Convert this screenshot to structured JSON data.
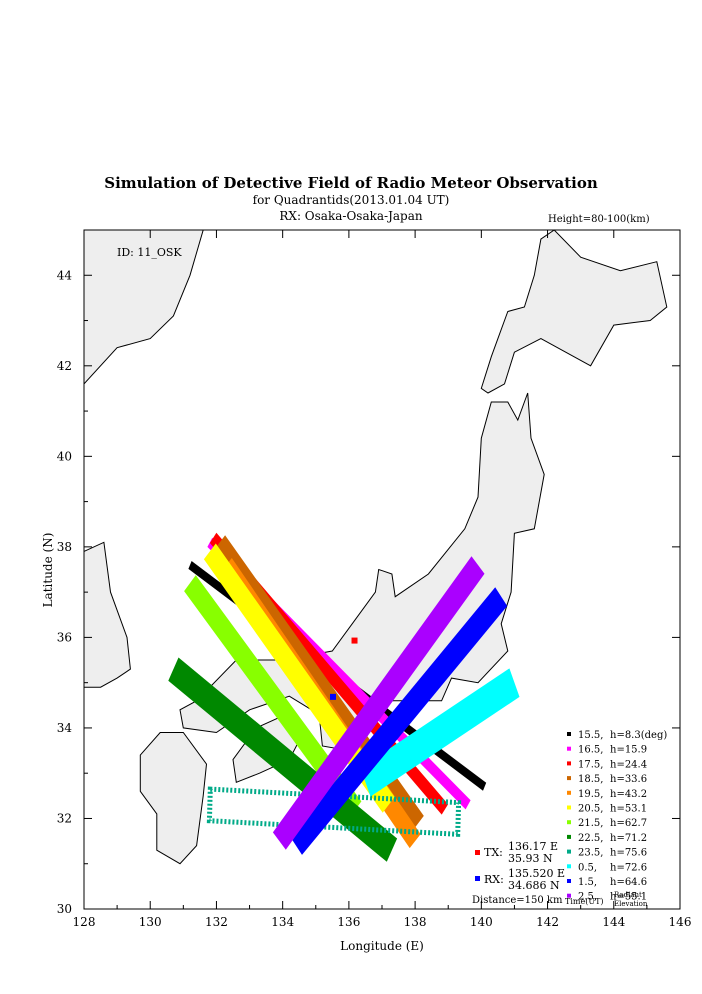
{
  "chart_data": {
    "type": "map",
    "title": "Simulation of Detective Field of Radio Meteor Observation",
    "subtitle_1": "for Quadrantids(2013.01.04 UT)",
    "subtitle_2": "RX: Osaka-Osaka-Japan",
    "height_note": "Height=80-100(km)",
    "id_label": "ID: 11_OSK",
    "xlabel": "Longitude (E)",
    "ylabel": "Latitude (N)",
    "xlim": [
      128,
      146
    ],
    "ylim": [
      30,
      45
    ],
    "xticks": [
      "128",
      "130",
      "132",
      "134",
      "136",
      "138",
      "140",
      "142",
      "144",
      "146"
    ],
    "yticks": [
      "30",
      "32",
      "34",
      "36",
      "38",
      "40",
      "42",
      "44"
    ],
    "tx": {
      "lon": 136.17,
      "lat": 35.93,
      "label": "TX:",
      "lon_text": "136.17 E",
      "lat_text": "35.93 N"
    },
    "rx": {
      "lon": 135.52,
      "lat": 34.686,
      "label": "RX:",
      "lon_text": "135.520 E",
      "lat_text": "34.686 N"
    },
    "distance": "Distance=150 km",
    "legend_footer": {
      "time": "Time(UT)",
      "radiant": "Radiant",
      "elevation": "Elevation"
    },
    "series": [
      {
        "time": "15.5",
        "h": "h=8.3(deg)",
        "color": "#000000",
        "dash": false,
        "width": 0.2,
        "ends": [
          [
            131.2,
            37.6
          ],
          [
            140.1,
            32.7
          ]
        ]
      },
      {
        "time": "16.5",
        "h": "h=15.9",
        "color": "#ff00ff",
        "dash": false,
        "width": 0.25,
        "ends": [
          [
            131.8,
            38.1
          ],
          [
            139.6,
            32.3
          ]
        ]
      },
      {
        "time": "17.5",
        "h": "h=24.4",
        "color": "#ff0000",
        "dash": false,
        "width": 0.3,
        "ends": [
          [
            131.9,
            38.2
          ],
          [
            138.9,
            32.2
          ]
        ]
      },
      {
        "time": "18.5",
        "h": "h=33.6",
        "color": "#cc6600",
        "dash": false,
        "width": 0.45,
        "ends": [
          [
            132.1,
            38.1
          ],
          [
            138.1,
            31.9
          ]
        ]
      },
      {
        "time": "19.5",
        "h": "h=43.2",
        "color": "#ff8800",
        "dash": false,
        "width": 0.45,
        "ends": [
          [
            132.3,
            37.6
          ],
          [
            138.0,
            31.5
          ]
        ]
      },
      {
        "time": "20.5",
        "h": "h=53.1",
        "color": "#ffff00",
        "dash": false,
        "width": 0.5,
        "ends": [
          [
            131.8,
            37.9
          ],
          [
            137.2,
            32.3
          ]
        ]
      },
      {
        "time": "21.5",
        "h": "h=62.7",
        "color": "#88ff00",
        "dash": false,
        "width": 0.5,
        "ends": [
          [
            131.2,
            37.2
          ],
          [
            136.2,
            32.2
          ]
        ]
      },
      {
        "time": "22.5",
        "h": "h=71.2",
        "color": "#008800",
        "dash": false,
        "width": 0.6,
        "ends": [
          [
            130.7,
            35.3
          ],
          [
            137.3,
            31.3
          ]
        ]
      },
      {
        "time": "23.5",
        "h": "h=75.6",
        "color": "#00aa88",
        "dash": true,
        "width": 0.7,
        "ends": [
          [
            131.8,
            32.3
          ],
          [
            139.3,
            32.0
          ]
        ]
      },
      {
        "time": "0.5",
        "h": "h=72.6",
        "color": "#00ffff",
        "dash": false,
        "width": 0.7,
        "ends": [
          [
            136.5,
            32.8
          ],
          [
            141.0,
            35.0
          ]
        ]
      },
      {
        "time": "1.5",
        "h": "h=64.6",
        "color": "#0000ff",
        "dash": false,
        "width": 0.55,
        "ends": [
          [
            134.4,
            31.4
          ],
          [
            140.6,
            36.9
          ]
        ]
      },
      {
        "time": "2.5",
        "h": "h=55.1",
        "color": "#aa00ff",
        "dash": false,
        "width": 0.55,
        "ends": [
          [
            133.9,
            31.5
          ],
          [
            139.9,
            37.6
          ]
        ]
      }
    ]
  }
}
